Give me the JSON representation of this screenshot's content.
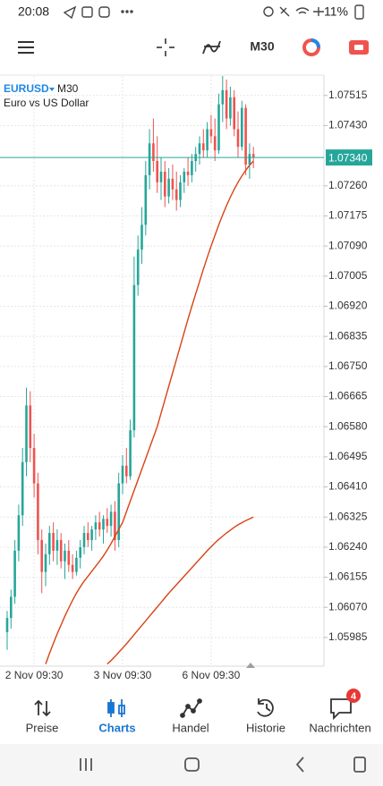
{
  "status_bar": {
    "time": "20:08",
    "battery": "11%"
  },
  "toolbar": {
    "timeframe": "M30"
  },
  "chart_data": {
    "type": "candlestick",
    "symbol": "EURUSD",
    "timeframe": "M30",
    "description": "Euro vs US Dollar",
    "up_color": "#26a69a",
    "down_color": "#ef5350",
    "grid": true,
    "ylim": [
      1.05904,
      1.0757
    ],
    "yticks": [
      1.07515,
      {
        "value": 1.0743,
        "label": "1.07430"
      },
      {
        "value": 1.0726,
        "label": "1.07260"
      },
      1.07175,
      {
        "value": 1.0709,
        "label": "1.07090"
      },
      1.07005,
      {
        "value": 1.0692,
        "label": "1.06920"
      },
      1.06835,
      {
        "value": 1.0675,
        "label": "1.06750"
      },
      1.06665,
      {
        "value": 1.0658,
        "label": "1.06580"
      },
      1.06495,
      {
        "value": 1.0641,
        "label": "1.06410"
      },
      1.06325,
      {
        "value": 1.0624,
        "label": "1.06240"
      },
      1.06155,
      {
        "value": 1.0607,
        "label": "1.06070"
      },
      1.05985
    ],
    "current_price": {
      "value": 1.0734,
      "label": "1.07340",
      "color": "#26a69a"
    },
    "categories": [
      null,
      null,
      null,
      null,
      null,
      null,
      null,
      "2 Nov 09:30",
      null,
      null,
      null,
      null,
      null,
      null,
      null,
      null,
      null,
      null,
      null,
      null,
      null,
      null,
      null,
      null,
      null,
      null,
      null,
      null,
      null,
      null,
      "3 Nov 09:30",
      null,
      null,
      null,
      null,
      null,
      null,
      null,
      null,
      null,
      null,
      null,
      null,
      null,
      null,
      null,
      null,
      null,
      null,
      null,
      null,
      null,
      null,
      "6 Nov 09:30",
      null,
      null,
      null,
      null,
      null,
      null,
      null,
      null,
      null,
      null,
      null
    ],
    "candles": [
      [
        1.06,
        1.0606,
        1.0595,
        1.0604
      ],
      [
        1.0604,
        1.0612,
        1.0601,
        1.061
      ],
      [
        1.061,
        1.0626,
        1.0608,
        1.0623
      ],
      [
        1.0623,
        1.0636,
        1.062,
        1.0633
      ],
      [
        1.0633,
        1.0652,
        1.063,
        1.0648
      ],
      [
        1.0648,
        1.0669,
        1.0644,
        1.0664
      ],
      [
        1.0664,
        1.0668,
        1.0648,
        1.0652
      ],
      [
        1.0652,
        1.0656,
        1.0638,
        1.0642
      ],
      [
        1.0642,
        1.0645,
        1.0622,
        1.0626
      ],
      [
        1.0626,
        1.0629,
        1.0611,
        1.0617
      ],
      [
        1.0617,
        1.0625,
        1.0613,
        1.0622
      ],
      [
        1.0622,
        1.063,
        1.0619,
        1.0628
      ],
      [
        1.0628,
        1.0631,
        1.062,
        1.0623
      ],
      [
        1.0623,
        1.0629,
        1.0619,
        1.0626
      ],
      [
        1.0626,
        1.0628,
        1.0618,
        1.062
      ],
      [
        1.062,
        1.0625,
        1.0615,
        1.0623
      ],
      [
        1.0623,
        1.0626,
        1.0617,
        1.0619
      ],
      [
        1.0619,
        1.0622,
        1.0615,
        1.0617
      ],
      [
        1.0617,
        1.0623,
        1.0616,
        1.0621
      ],
      [
        1.0621,
        1.0626,
        1.0618,
        1.0624
      ],
      [
        1.0624,
        1.063,
        1.0622,
        1.0628
      ],
      [
        1.0628,
        1.0631,
        1.0624,
        1.0626
      ],
      [
        1.0626,
        1.063,
        1.0623,
        1.0629
      ],
      [
        1.0629,
        1.0633,
        1.0626,
        1.0631
      ],
      [
        1.0631,
        1.0634,
        1.0627,
        1.0629
      ],
      [
        1.0629,
        1.0633,
        1.0625,
        1.0632
      ],
      [
        1.0632,
        1.0635,
        1.0628,
        1.063
      ],
      [
        1.063,
        1.0636,
        1.0627,
        1.0634
      ],
      [
        1.0634,
        1.0637,
        1.0623,
        1.0626
      ],
      [
        1.0626,
        1.0645,
        1.0624,
        1.0642
      ],
      [
        1.0642,
        1.065,
        1.0639,
        1.0647
      ],
      [
        1.0647,
        1.0652,
        1.0642,
        1.0644
      ],
      [
        1.0644,
        1.066,
        1.0643,
        1.0657
      ],
      [
        1.0657,
        1.0706,
        1.0655,
        1.0698
      ],
      [
        1.0698,
        1.0712,
        1.0695,
        1.0708
      ],
      [
        1.0708,
        1.072,
        1.0704,
        1.0715
      ],
      [
        1.0715,
        1.0733,
        1.0712,
        1.0729
      ],
      [
        1.0729,
        1.0742,
        1.0725,
        1.0738
      ],
      [
        1.0738,
        1.0745,
        1.073,
        1.0733
      ],
      [
        1.0733,
        1.074,
        1.0724,
        1.0727
      ],
      [
        1.0727,
        1.0734,
        1.0722,
        1.073
      ],
      [
        1.073,
        1.0733,
        1.072,
        1.0723
      ],
      [
        1.0723,
        1.0731,
        1.0721,
        1.0728
      ],
      [
        1.0728,
        1.0732,
        1.0722,
        1.0725
      ],
      [
        1.0725,
        1.073,
        1.0719,
        1.0722
      ],
      [
        1.0722,
        1.0729,
        1.072,
        1.0727
      ],
      [
        1.0727,
        1.0731,
        1.0724,
        1.073
      ],
      [
        1.073,
        1.0734,
        1.0726,
        1.0729
      ],
      [
        1.0729,
        1.0735,
        1.0727,
        1.0733
      ],
      [
        1.0733,
        1.0737,
        1.073,
        1.0735
      ],
      [
        1.0735,
        1.074,
        1.0732,
        1.0738
      ],
      [
        1.0738,
        1.0742,
        1.0734,
        1.0736
      ],
      [
        1.0736,
        1.0744,
        1.0734,
        1.0742
      ],
      [
        1.0742,
        1.0746,
        1.0738,
        1.074
      ],
      [
        1.074,
        1.0745,
        1.0733,
        1.0736
      ],
      [
        1.0736,
        1.0752,
        1.0735,
        1.0749
      ],
      [
        1.0749,
        1.0757,
        1.0744,
        1.0753
      ],
      [
        1.0753,
        1.0756,
        1.0742,
        1.0745
      ],
      [
        1.0745,
        1.0754,
        1.0743,
        1.0751
      ],
      [
        1.0751,
        1.0753,
        1.074,
        1.0742
      ],
      [
        1.0742,
        1.0747,
        1.0734,
        1.0737
      ],
      [
        1.0737,
        1.075,
        1.0736,
        1.0748
      ],
      [
        1.0748,
        1.0749,
        1.0729,
        1.0732
      ],
      [
        1.0732,
        1.0738,
        1.0728,
        1.0735
      ],
      [
        1.0735,
        1.0737,
        1.0731,
        1.0734
      ]
    ],
    "series": [
      {
        "color": "#d84315",
        "values": [
          null,
          null,
          null,
          null,
          null,
          null,
          null,
          null,
          null,
          null,
          1.0591,
          1.0594,
          1.05968,
          1.05995,
          1.0602,
          1.06045,
          1.06068,
          1.0609,
          1.0611,
          1.06128,
          1.06144,
          1.06158,
          1.06172,
          1.06186,
          1.062,
          1.06215,
          1.06232,
          1.0625,
          1.0627,
          1.0629,
          1.0631,
          1.0634,
          1.0637,
          1.064,
          1.0643,
          1.0646,
          1.0649,
          1.0652,
          1.0655,
          1.0658,
          1.06618,
          1.06656,
          1.06694,
          1.06732,
          1.0677,
          1.06808,
          1.06846,
          1.06884,
          1.0692,
          1.06955,
          1.0699,
          1.07025,
          1.07058,
          1.0709,
          1.0712,
          1.0715,
          1.07178,
          1.07204,
          1.07228,
          1.0725,
          1.0727,
          1.07288,
          1.07304,
          1.07318,
          1.0733
        ]
      },
      {
        "color": "#d84315",
        "values": [
          null,
          null,
          null,
          null,
          null,
          null,
          null,
          null,
          null,
          null,
          null,
          null,
          null,
          null,
          null,
          null,
          null,
          null,
          null,
          null,
          null,
          null,
          null,
          null,
          null,
          null,
          1.0591,
          1.0592,
          1.05931,
          1.05943,
          1.05955,
          1.05967,
          1.0598,
          1.05993,
          1.06006,
          1.06019,
          1.06032,
          1.06045,
          1.06058,
          1.06071,
          1.06084,
          1.06097,
          1.0611,
          1.06122,
          1.06134,
          1.06146,
          1.06158,
          1.0617,
          1.06182,
          1.06194,
          1.06206,
          1.06218,
          1.0623,
          1.06241,
          1.06252,
          1.06262,
          1.06271,
          1.0628,
          1.06288,
          1.06296,
          1.06303,
          1.06309,
          1.06315,
          1.0632,
          1.06325
        ]
      }
    ]
  },
  "tabs": [
    {
      "label": "Preise"
    },
    {
      "label": "Charts"
    },
    {
      "label": "Handel"
    },
    {
      "label": "Historie"
    },
    {
      "label": "Nachrichten",
      "badge": "4"
    }
  ],
  "active_tab": 1
}
